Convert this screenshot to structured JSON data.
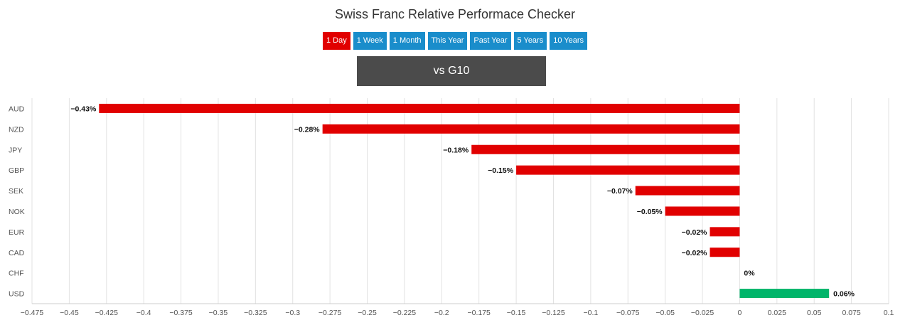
{
  "title": "Swiss Franc Relative Performace Checker",
  "periods": [
    {
      "label": "1 Day",
      "active": true
    },
    {
      "label": "1 Week",
      "active": false
    },
    {
      "label": "1 Month",
      "active": false
    },
    {
      "label": "This Year",
      "active": false
    },
    {
      "label": "Past Year",
      "active": false
    },
    {
      "label": "5 Years",
      "active": false
    },
    {
      "label": "10 Years",
      "active": false
    }
  ],
  "group_button": "vs G10",
  "colors": {
    "negative": "#e10000",
    "positive": "#00b56a",
    "tab": "#1a8dcb",
    "tab_active": "#e10000",
    "group_button": "#4b4b4b"
  },
  "chart_data": {
    "type": "bar",
    "orientation": "horizontal",
    "categories": [
      "AUD",
      "NZD",
      "JPY",
      "GBP",
      "SEK",
      "NOK",
      "EUR",
      "CAD",
      "CHF",
      "USD"
    ],
    "values": [
      -0.43,
      -0.28,
      -0.18,
      -0.15,
      -0.07,
      -0.05,
      -0.02,
      -0.02,
      0,
      0.06
    ],
    "data_labels": [
      "−0.43%",
      "−0.28%",
      "−0.18%",
      "−0.15%",
      "−0.07%",
      "−0.05%",
      "−0.02%",
      "−0.02%",
      "0%",
      "0.06%"
    ],
    "xlim": [
      -0.475,
      0.1
    ],
    "xticks": [
      -0.475,
      -0.45,
      -0.425,
      -0.4,
      -0.375,
      -0.35,
      -0.325,
      -0.3,
      -0.275,
      -0.25,
      -0.225,
      -0.2,
      -0.175,
      -0.15,
      -0.125,
      -0.1,
      -0.075,
      -0.05,
      -0.025,
      0,
      0.025,
      0.05,
      0.075,
      0.1
    ],
    "xtick_labels": [
      "−0.475",
      "−0.45",
      "−0.425",
      "−0.4",
      "−0.375",
      "−0.35",
      "−0.325",
      "−0.3",
      "−0.275",
      "−0.25",
      "−0.225",
      "−0.2",
      "−0.175",
      "−0.15",
      "−0.125",
      "−0.1",
      "−0.075",
      "−0.05",
      "−0.025",
      "0",
      "0.025",
      "0.05",
      "0.075",
      "0.1"
    ],
    "grid": true,
    "legend": false
  }
}
